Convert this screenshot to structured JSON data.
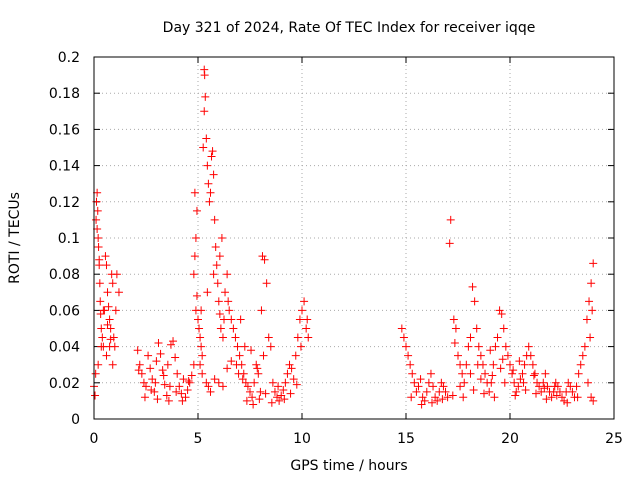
{
  "chart_data": {
    "type": "scatter",
    "title": "Day 321 of 2024, Rate Of TEC Index for receiver iqqe",
    "xlabel": "GPS time / hours",
    "ylabel": "ROTI / TECUs",
    "xlim": [
      0,
      25
    ],
    "ylim": [
      0,
      0.2
    ],
    "xticks": [
      "0",
      "5",
      "10",
      "15",
      "20",
      "25"
    ],
    "yticks": [
      "0",
      "0.02",
      "0.04",
      "0.06",
      "0.08",
      "0.1",
      "0.12",
      "0.14",
      "0.16",
      "0.18",
      "0.2"
    ],
    "grid": true,
    "marker": "+",
    "color": "#ff0000",
    "series": [
      {
        "points": [
          [
            0.0,
            0.018
          ],
          [
            0.05,
            0.013
          ],
          [
            0.08,
            0.025
          ],
          [
            0.1,
            0.11
          ],
          [
            0.12,
            0.12
          ],
          [
            0.15,
            0.125
          ],
          [
            0.18,
            0.115
          ],
          [
            0.2,
            0.1
          ],
          [
            0.22,
            0.095
          ],
          [
            0.25,
            0.085
          ],
          [
            0.28,
            0.075
          ],
          [
            0.3,
            0.065
          ],
          [
            0.32,
            0.058
          ],
          [
            0.35,
            0.05
          ],
          [
            0.4,
            0.045
          ],
          [
            0.45,
            0.04
          ],
          [
            0.5,
            0.06
          ],
          [
            0.55,
            0.09
          ],
          [
            0.6,
            0.085
          ],
          [
            0.65,
            0.07
          ],
          [
            0.7,
            0.062
          ],
          [
            0.75,
            0.055
          ],
          [
            0.8,
            0.05
          ],
          [
            0.85,
            0.08
          ],
          [
            0.9,
            0.075
          ],
          [
            0.95,
            0.045
          ],
          [
            1.0,
            0.04
          ],
          [
            1.1,
            0.08
          ],
          [
            1.2,
            0.07
          ],
          [
            0.35,
            0.04
          ],
          [
            0.6,
            0.035
          ],
          [
            0.75,
            0.04
          ],
          [
            0.9,
            0.03
          ],
          [
            0.2,
            0.03
          ],
          [
            0.45,
            0.06
          ],
          [
            1.05,
            0.06
          ],
          [
            0.15,
            0.105
          ],
          [
            0.25,
            0.088
          ],
          [
            0.65,
            0.052
          ],
          [
            0.8,
            0.044
          ],
          [
            2.1,
            0.038
          ],
          [
            2.2,
            0.03
          ],
          [
            2.3,
            0.025
          ],
          [
            2.4,
            0.02
          ],
          [
            2.5,
            0.018
          ],
          [
            2.6,
            0.035
          ],
          [
            2.7,
            0.028
          ],
          [
            2.8,
            0.022
          ],
          [
            2.9,
            0.015
          ],
          [
            3.0,
            0.032
          ],
          [
            3.1,
            0.042
          ],
          [
            3.2,
            0.036
          ],
          [
            3.3,
            0.027
          ],
          [
            3.4,
            0.019
          ],
          [
            3.5,
            0.013
          ],
          [
            3.6,
            0.01
          ],
          [
            3.7,
            0.041
          ],
          [
            3.8,
            0.043
          ],
          [
            3.9,
            0.034
          ],
          [
            4.0,
            0.025
          ],
          [
            4.1,
            0.018
          ],
          [
            4.2,
            0.014
          ],
          [
            4.3,
            0.022
          ],
          [
            4.4,
            0.012
          ],
          [
            4.5,
            0.016
          ],
          [
            4.6,
            0.02
          ],
          [
            4.7,
            0.024
          ],
          [
            4.8,
            0.03
          ],
          [
            4.9,
            0.06
          ],
          [
            2.45,
            0.012
          ],
          [
            2.75,
            0.016
          ],
          [
            3.05,
            0.011
          ],
          [
            3.35,
            0.024
          ],
          [
            3.65,
            0.018
          ],
          [
            3.95,
            0.015
          ],
          [
            4.25,
            0.01
          ],
          [
            4.55,
            0.021
          ],
          [
            2.15,
            0.027
          ],
          [
            2.95,
            0.02
          ],
          [
            3.55,
            0.03
          ],
          [
            4.8,
            0.08
          ],
          [
            4.85,
            0.09
          ],
          [
            4.9,
            0.1
          ],
          [
            4.95,
            0.115
          ],
          [
            4.85,
            0.125
          ],
          [
            4.95,
            0.068
          ],
          [
            5.0,
            0.055
          ],
          [
            5.05,
            0.05
          ],
          [
            5.1,
            0.045
          ],
          [
            5.15,
            0.04
          ],
          [
            5.2,
            0.035
          ],
          [
            5.25,
            0.15
          ],
          [
            5.3,
            0.17
          ],
          [
            5.35,
            0.178
          ],
          [
            5.3,
            0.193
          ],
          [
            5.32,
            0.19
          ],
          [
            5.4,
            0.155
          ],
          [
            5.45,
            0.14
          ],
          [
            5.5,
            0.13
          ],
          [
            5.55,
            0.12
          ],
          [
            5.6,
            0.125
          ],
          [
            5.65,
            0.145
          ],
          [
            5.7,
            0.148
          ],
          [
            5.75,
            0.135
          ],
          [
            5.8,
            0.11
          ],
          [
            5.85,
            0.095
          ],
          [
            5.9,
            0.085
          ],
          [
            5.95,
            0.075
          ],
          [
            6.0,
            0.065
          ],
          [
            6.05,
            0.058
          ],
          [
            6.1,
            0.05
          ],
          [
            6.2,
            0.045
          ],
          [
            6.3,
            0.07
          ],
          [
            6.4,
            0.08
          ],
          [
            6.5,
            0.06
          ],
          [
            6.6,
            0.055
          ],
          [
            6.7,
            0.05
          ],
          [
            6.8,
            0.045
          ],
          [
            6.9,
            0.04
          ],
          [
            7.0,
            0.035
          ],
          [
            5.1,
            0.03
          ],
          [
            5.2,
            0.025
          ],
          [
            5.4,
            0.02
          ],
          [
            5.5,
            0.018
          ],
          [
            5.6,
            0.015
          ],
          [
            5.8,
            0.022
          ],
          [
            6.0,
            0.02
          ],
          [
            6.2,
            0.018
          ],
          [
            6.4,
            0.028
          ],
          [
            6.6,
            0.032
          ],
          [
            5.15,
            0.06
          ],
          [
            5.45,
            0.07
          ],
          [
            5.75,
            0.08
          ],
          [
            6.05,
            0.09
          ],
          [
            6.15,
            0.1
          ],
          [
            6.25,
            0.055
          ],
          [
            6.45,
            0.065
          ],
          [
            7.05,
            0.055
          ],
          [
            6.85,
            0.03
          ],
          [
            6.95,
            0.025
          ],
          [
            7.1,
            0.03
          ],
          [
            7.2,
            0.025
          ],
          [
            7.3,
            0.02
          ],
          [
            7.4,
            0.018
          ],
          [
            7.5,
            0.015
          ],
          [
            7.6,
            0.012
          ],
          [
            7.7,
            0.02
          ],
          [
            7.8,
            0.03
          ],
          [
            7.9,
            0.025
          ],
          [
            8.0,
            0.015
          ],
          [
            8.1,
            0.09
          ],
          [
            8.2,
            0.088
          ],
          [
            8.3,
            0.075
          ],
          [
            8.4,
            0.045
          ],
          [
            8.5,
            0.04
          ],
          [
            8.6,
            0.02
          ],
          [
            8.7,
            0.015
          ],
          [
            8.8,
            0.012
          ],
          [
            8.9,
            0.01
          ],
          [
            9.0,
            0.013
          ],
          [
            9.1,
            0.016
          ],
          [
            9.2,
            0.02
          ],
          [
            9.3,
            0.025
          ],
          [
            9.4,
            0.03
          ],
          [
            9.5,
            0.028
          ],
          [
            9.6,
            0.022
          ],
          [
            9.7,
            0.035
          ],
          [
            9.8,
            0.045
          ],
          [
            9.9,
            0.055
          ],
          [
            10.0,
            0.06
          ],
          [
            10.1,
            0.065
          ],
          [
            10.2,
            0.05
          ],
          [
            10.3,
            0.045
          ],
          [
            9.95,
            0.04
          ],
          [
            7.35,
            0.01
          ],
          [
            7.65,
            0.008
          ],
          [
            7.95,
            0.011
          ],
          [
            8.25,
            0.014
          ],
          [
            8.55,
            0.009
          ],
          [
            8.85,
            0.018
          ],
          [
            9.15,
            0.011
          ],
          [
            9.45,
            0.014
          ],
          [
            9.75,
            0.019
          ],
          [
            7.15,
            0.022
          ],
          [
            8.05,
            0.06
          ],
          [
            10.25,
            0.055
          ],
          [
            7.25,
            0.04
          ],
          [
            7.55,
            0.038
          ],
          [
            7.85,
            0.028
          ],
          [
            8.15,
            0.035
          ],
          [
            14.8,
            0.05
          ],
          [
            14.9,
            0.045
          ],
          [
            15.0,
            0.04
          ],
          [
            15.1,
            0.035
          ],
          [
            15.2,
            0.03
          ],
          [
            15.3,
            0.025
          ],
          [
            15.4,
            0.02
          ],
          [
            15.5,
            0.015
          ],
          [
            15.6,
            0.018
          ],
          [
            15.7,
            0.022
          ],
          [
            15.8,
            0.012
          ],
          [
            15.9,
            0.01
          ],
          [
            16.0,
            0.015
          ],
          [
            16.1,
            0.02
          ],
          [
            16.2,
            0.025
          ],
          [
            16.3,
            0.018
          ],
          [
            16.4,
            0.012
          ],
          [
            16.5,
            0.01
          ],
          [
            16.6,
            0.015
          ],
          [
            16.7,
            0.02
          ],
          [
            16.8,
            0.018
          ],
          [
            16.9,
            0.015
          ],
          [
            17.0,
            0.012
          ],
          [
            17.1,
            0.097
          ],
          [
            17.15,
            0.11
          ],
          [
            17.3,
            0.055
          ],
          [
            17.4,
            0.05
          ],
          [
            17.5,
            0.035
          ],
          [
            17.6,
            0.03
          ],
          [
            17.7,
            0.025
          ],
          [
            17.8,
            0.02
          ],
          [
            17.9,
            0.03
          ],
          [
            18.0,
            0.04
          ],
          [
            18.1,
            0.045
          ],
          [
            18.2,
            0.073
          ],
          [
            18.3,
            0.065
          ],
          [
            18.4,
            0.05
          ],
          [
            18.5,
            0.04
          ],
          [
            18.6,
            0.035
          ],
          [
            18.7,
            0.03
          ],
          [
            18.8,
            0.025
          ],
          [
            18.9,
            0.02
          ],
          [
            19.0,
            0.015
          ],
          [
            19.1,
            0.02
          ],
          [
            19.2,
            0.03
          ],
          [
            19.3,
            0.04
          ],
          [
            19.4,
            0.045
          ],
          [
            19.5,
            0.06
          ],
          [
            19.6,
            0.058
          ],
          [
            19.7,
            0.05
          ],
          [
            19.8,
            0.04
          ],
          [
            19.9,
            0.035
          ],
          [
            20.0,
            0.03
          ],
          [
            20.1,
            0.025
          ],
          [
            20.2,
            0.02
          ],
          [
            20.3,
            0.015
          ],
          [
            20.4,
            0.018
          ],
          [
            20.5,
            0.022
          ],
          [
            20.6,
            0.025
          ],
          [
            20.7,
            0.03
          ],
          [
            20.8,
            0.035
          ],
          [
            20.9,
            0.04
          ],
          [
            21.0,
            0.035
          ],
          [
            21.1,
            0.03
          ],
          [
            21.2,
            0.025
          ],
          [
            21.3,
            0.02
          ],
          [
            21.4,
            0.018
          ],
          [
            21.5,
            0.015
          ],
          [
            21.6,
            0.02
          ],
          [
            21.7,
            0.025
          ],
          [
            21.8,
            0.018
          ],
          [
            21.9,
            0.015
          ],
          [
            22.0,
            0.012
          ],
          [
            22.1,
            0.015
          ],
          [
            22.2,
            0.02
          ],
          [
            22.3,
            0.018
          ],
          [
            22.4,
            0.015
          ],
          [
            22.5,
            0.012
          ],
          [
            22.6,
            0.01
          ],
          [
            22.7,
            0.015
          ],
          [
            22.8,
            0.02
          ],
          [
            22.9,
            0.018
          ],
          [
            23.0,
            0.015
          ],
          [
            23.1,
            0.012
          ],
          [
            23.2,
            0.018
          ],
          [
            23.3,
            0.025
          ],
          [
            23.4,
            0.03
          ],
          [
            23.5,
            0.035
          ],
          [
            23.6,
            0.04
          ],
          [
            23.7,
            0.055
          ],
          [
            23.8,
            0.065
          ],
          [
            23.9,
            0.075
          ],
          [
            24.0,
            0.086
          ],
          [
            23.95,
            0.06
          ],
          [
            23.85,
            0.045
          ],
          [
            23.75,
            0.02
          ],
          [
            24.0,
            0.01
          ],
          [
            23.9,
            0.012
          ],
          [
            15.25,
            0.012
          ],
          [
            15.75,
            0.008
          ],
          [
            16.25,
            0.009
          ],
          [
            16.75,
            0.011
          ],
          [
            17.25,
            0.013
          ],
          [
            17.75,
            0.012
          ],
          [
            18.25,
            0.016
          ],
          [
            18.75,
            0.014
          ],
          [
            19.25,
            0.012
          ],
          [
            19.75,
            0.02
          ],
          [
            20.25,
            0.013
          ],
          [
            20.75,
            0.016
          ],
          [
            21.25,
            0.014
          ],
          [
            21.75,
            0.011
          ],
          [
            22.25,
            0.013
          ],
          [
            22.75,
            0.009
          ],
          [
            23.25,
            0.012
          ],
          [
            17.35,
            0.042
          ],
          [
            18.45,
            0.03
          ],
          [
            19.05,
            0.038
          ],
          [
            19.55,
            0.028
          ],
          [
            20.45,
            0.032
          ],
          [
            17.6,
            0.018
          ],
          [
            18.1,
            0.025
          ],
          [
            18.6,
            0.022
          ],
          [
            19.15,
            0.024
          ],
          [
            19.65,
            0.033
          ],
          [
            20.15,
            0.027
          ],
          [
            20.65,
            0.02
          ],
          [
            21.15,
            0.024
          ],
          [
            21.65,
            0.017
          ],
          [
            22.15,
            0.018
          ]
        ]
      }
    ]
  }
}
